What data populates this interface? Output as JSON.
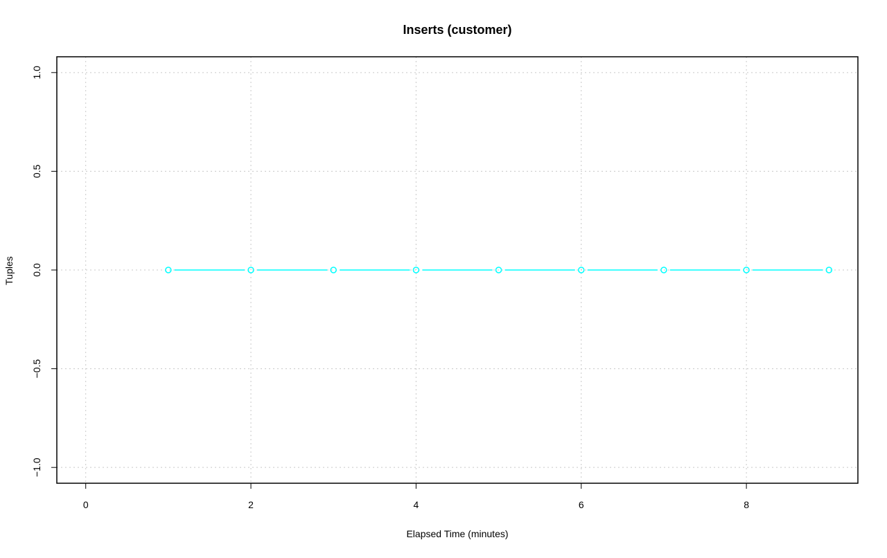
{
  "chart_data": {
    "type": "line",
    "title": "Inserts (customer)",
    "xlabel": "Elapsed Time (minutes)",
    "ylabel": "Tuples",
    "xlim": [
      -0.35,
      9.35
    ],
    "ylim": [
      -1.08,
      1.08
    ],
    "xticks": [
      0,
      2,
      4,
      6,
      8
    ],
    "yticks": [
      -1.0,
      -0.5,
      0.0,
      0.5,
      1.0
    ],
    "ytick_labels": [
      "−1.0",
      "−0.5",
      "0.0",
      "0.5",
      "1.0"
    ],
    "grid": true,
    "series": [
      {
        "color": "#00ffff",
        "marker": "open-circle",
        "x": [
          1,
          2,
          3,
          4,
          5,
          6,
          7,
          8,
          9
        ],
        "y": [
          0,
          0,
          0,
          0,
          0,
          0,
          0,
          0,
          0
        ]
      }
    ]
  }
}
